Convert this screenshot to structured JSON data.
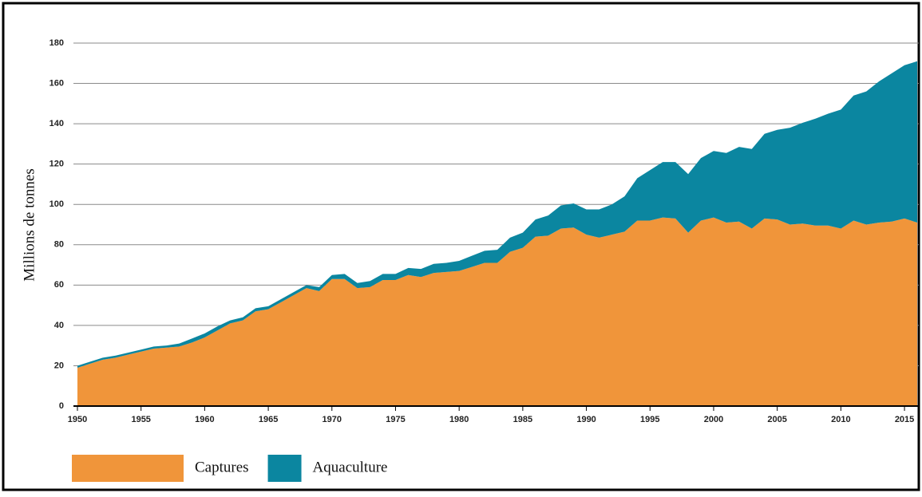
{
  "chart_data": {
    "type": "stacked-area",
    "ylabel": "Millions de tonnes",
    "x": [
      1950,
      1951,
      1952,
      1953,
      1954,
      1955,
      1956,
      1957,
      1958,
      1959,
      1960,
      1961,
      1962,
      1963,
      1964,
      1965,
      1966,
      1967,
      1968,
      1969,
      1970,
      1971,
      1972,
      1973,
      1974,
      1975,
      1976,
      1977,
      1978,
      1979,
      1980,
      1981,
      1982,
      1983,
      1984,
      1985,
      1986,
      1987,
      1988,
      1989,
      1990,
      1991,
      1992,
      1993,
      1994,
      1995,
      1996,
      1997,
      1998,
      1999,
      2000,
      2001,
      2002,
      2003,
      2004,
      2005,
      2006,
      2007,
      2008,
      2009,
      2010,
      2011,
      2012,
      2013,
      2014,
      2015,
      2016
    ],
    "series": [
      {
        "name": "Captures",
        "color": "#f0953a",
        "values": [
          19,
          21,
          23,
          24,
          25.5,
          27,
          28.5,
          29,
          29.5,
          31.5,
          34,
          37.5,
          41,
          42.5,
          47,
          48,
          51.5,
          55,
          58.5,
          57,
          63,
          63,
          58.5,
          59,
          62.5,
          62.5,
          65,
          64,
          66,
          66.5,
          67,
          69,
          71,
          71,
          76.5,
          78.5,
          84,
          84.5,
          88,
          88.5,
          85,
          83.5,
          85,
          86.5,
          92,
          92,
          93.5,
          93,
          86,
          92,
          93.5,
          91,
          91.5,
          88,
          93,
          92.5,
          90,
          90.5,
          89.5,
          89.5,
          88,
          92,
          90,
          91,
          91.5,
          93,
          91
        ]
      },
      {
        "name": "Aquaculture",
        "color": "#0b86a0",
        "values": [
          1,
          1,
          1,
          1,
          1,
          1,
          1,
          1,
          1.5,
          2,
          2,
          2,
          1.5,
          1.5,
          1.5,
          1.5,
          1.5,
          1.5,
          1.5,
          2,
          2,
          2.5,
          2.5,
          3,
          3,
          3,
          3.5,
          4,
          4.5,
          4.5,
          5,
          5.5,
          6,
          6.5,
          7,
          7.5,
          8.5,
          10,
          11.5,
          12,
          12.5,
          14,
          15,
          17.5,
          21,
          25,
          27.5,
          28,
          29,
          31,
          33,
          34.5,
          37,
          39.5,
          42,
          44.5,
          48,
          50,
          53,
          55.5,
          59,
          62,
          66,
          70,
          73.5,
          76,
          80
        ]
      }
    ],
    "xlim": [
      1950,
      2016
    ],
    "xticks": [
      1950,
      1955,
      1960,
      1965,
      1970,
      1975,
      1980,
      1985,
      1990,
      1995,
      2000,
      2005,
      2010,
      2015
    ],
    "ylim": [
      0,
      180
    ],
    "yticks": [
      0,
      20,
      40,
      60,
      80,
      100,
      120,
      140,
      160,
      180
    ],
    "grid": true,
    "legend": "bottom-left"
  }
}
